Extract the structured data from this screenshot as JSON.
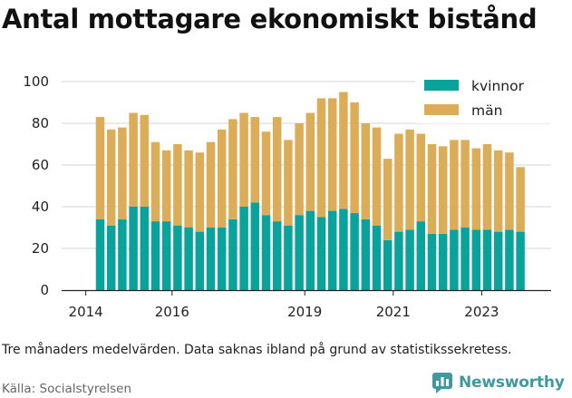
{
  "title": "Antal mottagare ekonomiskt bistånd",
  "note": "Tre månaders medelvärden. Data saknas ibland på grund av statistikssekretess.",
  "source": "Källa: Socialstyrelsen",
  "brand": {
    "name": "Newsworthy",
    "icon": "newsworthy-logo-icon",
    "color": "#3f9aa0"
  },
  "colors": {
    "kvinnor": "#0aa39b",
    "man": "#dcad58"
  },
  "chart_data": {
    "type": "bar",
    "stacked": true,
    "title": "Antal mottagare ekonomiskt bistånd",
    "xlabel": "",
    "ylabel": "",
    "ylim": [
      0,
      100
    ],
    "yticks": [
      0,
      20,
      40,
      60,
      80,
      100
    ],
    "xticks": [
      "2014",
      "2016",
      "2019",
      "2021",
      "2023"
    ],
    "grid": true,
    "legend": "top-right",
    "categories": [
      "2014Q2",
      "2014Q3",
      "2014Q4",
      "2015Q1",
      "2015Q2",
      "2015Q3",
      "2015Q4",
      "2016Q1",
      "2016Q2",
      "2016Q3",
      "2016Q4",
      "2017Q1",
      "2017Q2",
      "2017Q3",
      "2017Q4",
      "2018Q1",
      "2018Q2",
      "2018Q3",
      "2018Q4",
      "2019Q1",
      "2019Q2",
      "2019Q3",
      "2019Q4",
      "2020Q1",
      "2020Q2",
      "2020Q3",
      "2020Q4",
      "2021Q1",
      "2021Q2",
      "2021Q3",
      "2021Q4",
      "2022Q1",
      "2022Q2",
      "2022Q3",
      "2022Q4",
      "2023Q1",
      "2023Q2",
      "2023Q3",
      "2023Q4"
    ],
    "series": [
      {
        "name": "kvinnor",
        "values": [
          34,
          31,
          34,
          40,
          40,
          33,
          33,
          31,
          30,
          28,
          30,
          30,
          34,
          40,
          42,
          36,
          33,
          31,
          36,
          38,
          35,
          38,
          39,
          37,
          34,
          31,
          24,
          28,
          29,
          33,
          27,
          27,
          29,
          30,
          29,
          29,
          28,
          29,
          28
        ]
      },
      {
        "name": "män",
        "values": [
          49,
          46,
          44,
          45,
          44,
          38,
          34,
          39,
          37,
          38,
          41,
          47,
          48,
          45,
          41,
          40,
          50,
          41,
          44,
          47,
          57,
          54,
          56,
          53,
          46,
          47,
          39,
          47,
          48,
          42,
          43,
          42,
          43,
          42,
          39,
          41,
          39,
          37,
          31
        ]
      }
    ]
  }
}
